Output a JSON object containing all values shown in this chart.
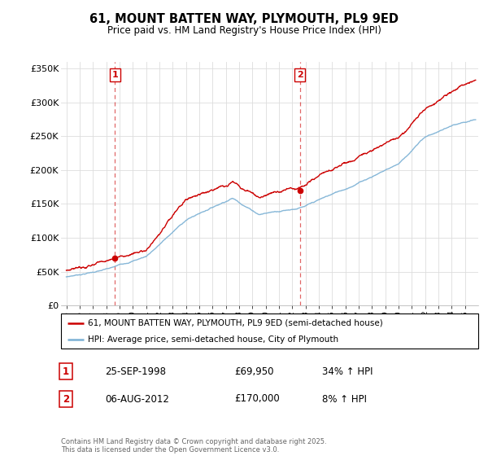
{
  "title": "61, MOUNT BATTEN WAY, PLYMOUTH, PL9 9ED",
  "subtitle": "Price paid vs. HM Land Registry's House Price Index (HPI)",
  "legend_line1": "61, MOUNT BATTEN WAY, PLYMOUTH, PL9 9ED (semi-detached house)",
  "legend_line2": "HPI: Average price, semi-detached house, City of Plymouth",
  "footnote": "Contains HM Land Registry data © Crown copyright and database right 2025.\nThis data is licensed under the Open Government Licence v3.0.",
  "sale1_date": "25-SEP-1998",
  "sale1_price": 69950,
  "sale1_label": "1",
  "sale1_hpi": "34% ↑ HPI",
  "sale2_date": "06-AUG-2012",
  "sale2_price": 170000,
  "sale2_label": "2",
  "sale2_hpi": "8% ↑ HPI",
  "ylim": [
    0,
    360000
  ],
  "yticks": [
    0,
    50000,
    100000,
    150000,
    200000,
    250000,
    300000,
    350000
  ],
  "red_color": "#cc0000",
  "blue_color": "#7ab0d4",
  "dashed_color": "#cc0000",
  "grid_color": "#dddddd",
  "bg_color": "#ffffff",
  "xlim_left": 1994.6,
  "xlim_right": 2026.0
}
